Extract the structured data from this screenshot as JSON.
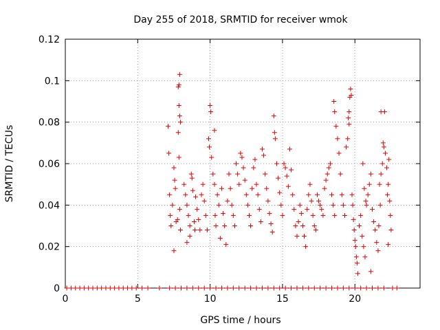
{
  "chart_data": {
    "type": "scatter",
    "title": "Day 255 of 2018, SRMTID for receiver wmok",
    "xlabel": "GPS time / hours",
    "ylabel": "SRMTID / TECUs",
    "xlim": [
      0,
      24.5
    ],
    "ylim": [
      0,
      0.12
    ],
    "xticks": [
      0,
      5,
      10,
      15,
      20
    ],
    "yticks": [
      0,
      0.02,
      0.04,
      0.06,
      0.08,
      0.1,
      0.12
    ],
    "grid": true,
    "marker": "+",
    "series": [
      {
        "name": "SRMTID",
        "color": "#e00000",
        "points": [
          [
            0.1,
            0
          ],
          [
            0.4,
            0
          ],
          [
            0.7,
            0
          ],
          [
            1.0,
            0
          ],
          [
            1.3,
            0
          ],
          [
            1.6,
            0
          ],
          [
            1.9,
            0
          ],
          [
            2.2,
            0
          ],
          [
            2.5,
            0
          ],
          [
            2.8,
            0
          ],
          [
            3.1,
            0
          ],
          [
            3.4,
            0
          ],
          [
            3.7,
            0
          ],
          [
            4.0,
            0
          ],
          [
            4.3,
            0
          ],
          [
            4.6,
            0
          ],
          [
            4.9,
            0
          ],
          [
            5.3,
            0
          ],
          [
            5.7,
            0
          ],
          [
            6.5,
            0
          ],
          [
            7.2,
            0
          ],
          [
            7.6,
            0
          ],
          [
            8.0,
            0
          ],
          [
            8.4,
            0
          ],
          [
            8.8,
            0
          ],
          [
            9.2,
            0
          ],
          [
            9.6,
            0
          ],
          [
            10.0,
            0
          ],
          [
            10.4,
            0
          ],
          [
            10.8,
            0
          ],
          [
            11.2,
            0
          ],
          [
            11.6,
            0
          ],
          [
            12.0,
            0
          ],
          [
            12.4,
            0
          ],
          [
            12.8,
            0
          ],
          [
            13.2,
            0
          ],
          [
            13.6,
            0
          ],
          [
            14.0,
            0
          ],
          [
            14.4,
            0
          ],
          [
            14.8,
            0
          ],
          [
            15.2,
            0
          ],
          [
            15.6,
            0
          ],
          [
            16.0,
            0
          ],
          [
            16.4,
            0
          ],
          [
            16.8,
            0
          ],
          [
            17.2,
            0
          ],
          [
            17.6,
            0
          ],
          [
            18.0,
            0
          ],
          [
            18.4,
            0
          ],
          [
            18.8,
            0
          ],
          [
            19.2,
            0
          ],
          [
            19.6,
            0
          ],
          [
            20.0,
            0
          ],
          [
            20.4,
            0
          ],
          [
            20.8,
            0
          ],
          [
            21.2,
            0
          ],
          [
            21.6,
            0
          ],
          [
            22.0,
            0
          ],
          [
            22.6,
            0
          ],
          [
            22.9,
            0
          ],
          [
            7.1,
            0.078
          ],
          [
            7.15,
            0.065
          ],
          [
            7.2,
            0.045
          ],
          [
            7.25,
            0.035
          ],
          [
            7.3,
            0.03
          ],
          [
            7.4,
            0.04
          ],
          [
            7.5,
            0.058
          ],
          [
            7.55,
            0.052
          ],
          [
            7.6,
            0.048
          ],
          [
            7.65,
            0.032
          ],
          [
            7.5,
            0.018
          ],
          [
            7.8,
            0.097
          ],
          [
            7.85,
            0.098
          ],
          [
            7.9,
            0.103
          ],
          [
            7.85,
            0.088
          ],
          [
            7.9,
            0.083
          ],
          [
            7.95,
            0.08
          ],
          [
            7.8,
            0.075
          ],
          [
            7.85,
            0.063
          ],
          [
            7.9,
            0.038
          ],
          [
            7.95,
            0.028
          ],
          [
            7.75,
            0.033
          ],
          [
            8.2,
            0.05
          ],
          [
            8.3,
            0.045
          ],
          [
            8.4,
            0.04
          ],
          [
            8.5,
            0.035
          ],
          [
            8.6,
            0.03
          ],
          [
            8.7,
            0.055
          ],
          [
            8.75,
            0.053
          ],
          [
            8.8,
            0.047
          ],
          [
            8.9,
            0.032
          ],
          [
            8.95,
            0.028
          ],
          [
            8.6,
            0.025
          ],
          [
            8.4,
            0.022
          ],
          [
            9.0,
            0.044
          ],
          [
            9.1,
            0.038
          ],
          [
            9.2,
            0.033
          ],
          [
            9.3,
            0.028
          ],
          [
            9.4,
            0.045
          ],
          [
            9.5,
            0.05
          ],
          [
            9.6,
            0.042
          ],
          [
            9.7,
            0.035
          ],
          [
            9.8,
            0.028
          ],
          [
            9.9,
            0.072
          ],
          [
            9.95,
            0.068
          ],
          [
            10.0,
            0.088
          ],
          [
            10.05,
            0.085
          ],
          [
            10.1,
            0.063
          ],
          [
            10.2,
            0.055
          ],
          [
            10.3,
            0.05
          ],
          [
            10.35,
            0.035
          ],
          [
            10.4,
            0.03
          ],
          [
            10.3,
            0.076
          ],
          [
            10.5,
            0.045
          ],
          [
            10.6,
            0.04
          ],
          [
            10.7,
            0.024
          ],
          [
            10.8,
            0.048
          ],
          [
            10.9,
            0.036
          ],
          [
            11.0,
            0.03
          ],
          [
            11.1,
            0.021
          ],
          [
            11.2,
            0.042
          ],
          [
            11.3,
            0.055
          ],
          [
            11.4,
            0.048
          ],
          [
            11.5,
            0.04
          ],
          [
            11.6,
            0.035
          ],
          [
            11.7,
            0.03
          ],
          [
            11.8,
            0.06
          ],
          [
            11.9,
            0.055
          ],
          [
            12.0,
            0.05
          ],
          [
            12.1,
            0.065
          ],
          [
            12.2,
            0.063
          ],
          [
            12.3,
            0.058
          ],
          [
            12.4,
            0.052
          ],
          [
            12.5,
            0.045
          ],
          [
            12.6,
            0.04
          ],
          [
            12.7,
            0.035
          ],
          [
            12.8,
            0.03
          ],
          [
            12.9,
            0.048
          ],
          [
            13.0,
            0.058
          ],
          [
            13.1,
            0.062
          ],
          [
            13.2,
            0.05
          ],
          [
            13.3,
            0.045
          ],
          [
            13.4,
            0.038
          ],
          [
            13.5,
            0.032
          ],
          [
            13.6,
            0.067
          ],
          [
            13.7,
            0.064
          ],
          [
            13.8,
            0.055
          ],
          [
            13.9,
            0.048
          ],
          [
            14.0,
            0.042
          ],
          [
            14.1,
            0.036
          ],
          [
            14.2,
            0.031
          ],
          [
            14.3,
            0.027
          ],
          [
            14.4,
            0.083
          ],
          [
            14.45,
            0.075
          ],
          [
            14.5,
            0.072
          ],
          [
            14.6,
            0.06
          ],
          [
            14.7,
            0.053
          ],
          [
            14.8,
            0.046
          ],
          [
            14.9,
            0.04
          ],
          [
            15.0,
            0.035
          ],
          [
            15.1,
            0.06
          ],
          [
            15.2,
            0.058
          ],
          [
            15.3,
            0.054
          ],
          [
            15.4,
            0.049
          ],
          [
            15.5,
            0.067
          ],
          [
            15.6,
            0.057
          ],
          [
            15.7,
            0.045
          ],
          [
            15.8,
            0.038
          ],
          [
            15.9,
            0.03
          ],
          [
            16.0,
            0.025
          ],
          [
            16.1,
            0.032
          ],
          [
            16.2,
            0.04
          ],
          [
            16.3,
            0.036
          ],
          [
            16.4,
            0.03
          ],
          [
            16.5,
            0.025
          ],
          [
            16.6,
            0.02
          ],
          [
            16.7,
            0.038
          ],
          [
            16.8,
            0.045
          ],
          [
            16.9,
            0.05
          ],
          [
            17.0,
            0.042
          ],
          [
            17.1,
            0.035
          ],
          [
            17.2,
            0.03
          ],
          [
            17.3,
            0.028
          ],
          [
            17.4,
            0.045
          ],
          [
            17.5,
            0.042
          ],
          [
            17.6,
            0.04
          ],
          [
            17.7,
            0.038
          ],
          [
            17.8,
            0.035
          ],
          [
            17.9,
            0.048
          ],
          [
            18.0,
            0.052
          ],
          [
            18.1,
            0.055
          ],
          [
            18.2,
            0.058
          ],
          [
            18.3,
            0.06
          ],
          [
            18.4,
            0.045
          ],
          [
            18.5,
            0.04
          ],
          [
            18.6,
            0.035
          ],
          [
            18.55,
            0.09
          ],
          [
            18.6,
            0.085
          ],
          [
            18.7,
            0.078
          ],
          [
            18.8,
            0.072
          ],
          [
            18.9,
            0.065
          ],
          [
            19.0,
            0.055
          ],
          [
            19.1,
            0.045
          ],
          [
            19.2,
            0.04
          ],
          [
            19.3,
            0.035
          ],
          [
            19.4,
            0.068
          ],
          [
            19.5,
            0.072
          ],
          [
            19.55,
            0.082
          ],
          [
            19.6,
            0.085
          ],
          [
            19.65,
            0.092
          ],
          [
            19.7,
            0.096
          ],
          [
            19.75,
            0.093
          ],
          [
            19.6,
            0.079
          ],
          [
            19.8,
            0.045
          ],
          [
            19.85,
            0.04
          ],
          [
            19.9,
            0.033
          ],
          [
            19.95,
            0.028
          ],
          [
            20.0,
            0.023
          ],
          [
            20.05,
            0.02
          ],
          [
            20.1,
            0.015
          ],
          [
            20.15,
            0.012
          ],
          [
            20.2,
            0.007
          ],
          [
            20.3,
            0.03
          ],
          [
            20.4,
            0.035
          ],
          [
            20.5,
            0.025
          ],
          [
            20.6,
            0.02
          ],
          [
            20.7,
            0.015
          ],
          [
            20.8,
            0.04
          ],
          [
            20.9,
            0.045
          ],
          [
            21.0,
            0.05
          ],
          [
            21.1,
            0.055
          ],
          [
            21.2,
            0.038
          ],
          [
            21.3,
            0.032
          ],
          [
            21.4,
            0.028
          ],
          [
            21.5,
            0.022
          ],
          [
            21.6,
            0.018
          ],
          [
            21.1,
            0.008
          ],
          [
            20.55,
            0.06
          ],
          [
            20.65,
            0.048
          ],
          [
            20.75,
            0.042
          ],
          [
            21.7,
            0.05
          ],
          [
            21.8,
            0.055
          ],
          [
            21.9,
            0.06
          ],
          [
            22.0,
            0.068
          ],
          [
            22.1,
            0.065
          ],
          [
            22.2,
            0.058
          ],
          [
            22.3,
            0.05
          ],
          [
            22.4,
            0.042
          ],
          [
            22.45,
            0.035
          ],
          [
            22.5,
            0.028
          ],
          [
            22.3,
            0.021
          ],
          [
            21.8,
            0.085
          ],
          [
            22.05,
            0.085
          ],
          [
            21.95,
            0.07
          ],
          [
            22.35,
            0.062
          ],
          [
            22.25,
            0.045
          ],
          [
            21.75,
            0.04
          ],
          [
            21.65,
            0.03
          ]
        ]
      }
    ]
  }
}
